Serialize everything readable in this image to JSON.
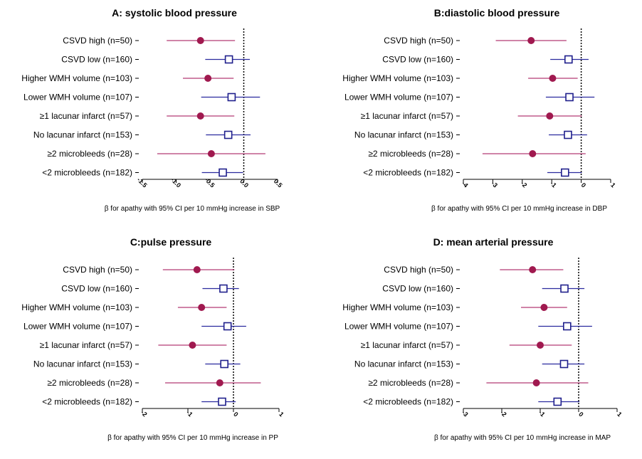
{
  "colors": {
    "group_a": "#a0194f",
    "group_b": "#1f1f8c",
    "group_a_ci": "#b53a73",
    "group_b_ci": "#2a2a9e"
  },
  "chart_data": [
    {
      "type": "forest",
      "title": "A: systolic blood pressure",
      "xlabel": "β for apathy with 95% CI per 10 mmHg increase in SBP",
      "xlim": [
        -1.5,
        0.5
      ],
      "ticks": [
        "-1.5",
        "-1.0",
        "-0.5",
        "0.0",
        "0.5"
      ],
      "tick_values": [
        -1.5,
        -1.0,
        -0.5,
        0.0,
        0.5
      ],
      "rows": [
        {
          "label": "CSVD high (n=50)",
          "est": -0.64,
          "lo": -1.14,
          "hi": -0.13,
          "marker": "circle"
        },
        {
          "label": "CSVD low (n=160)",
          "est": -0.22,
          "lo": -0.57,
          "hi": 0.09,
          "marker": "square"
        },
        {
          "label": "Higher WMH volume (n=103)",
          "est": -0.53,
          "lo": -0.9,
          "hi": -0.15,
          "marker": "circle"
        },
        {
          "label": "Lower WMH volume (n=107)",
          "est": -0.18,
          "lo": -0.63,
          "hi": 0.24,
          "marker": "square"
        },
        {
          "label": "≥1 lacunar infarct (n=57)",
          "est": -0.64,
          "lo": -1.14,
          "hi": -0.14,
          "marker": "circle"
        },
        {
          "label": "No lacunar infarct (n=153)",
          "est": -0.23,
          "lo": -0.56,
          "hi": 0.1,
          "marker": "square"
        },
        {
          "label": "≥2 microbleeds (n=28)",
          "est": -0.48,
          "lo": -1.28,
          "hi": 0.32,
          "marker": "circle"
        },
        {
          "label": "<2 microbleeds (n=182)",
          "est": -0.31,
          "lo": -0.62,
          "hi": -0.01,
          "marker": "square"
        }
      ]
    },
    {
      "type": "forest",
      "title": "B:diastolic blood pressure",
      "xlabel": "β for apathy with 95% CI per 10 mmHg increase in DBP",
      "xlim": [
        -4,
        1
      ],
      "ticks": [
        "-4",
        "-3",
        "-2",
        "-1",
        "0",
        "1"
      ],
      "tick_values": [
        -4,
        -3,
        -2,
        -1,
        0,
        1
      ],
      "rows": [
        {
          "label": "CSVD high (n=50)",
          "est": -1.7,
          "lo": -2.9,
          "hi": -0.5,
          "marker": "circle"
        },
        {
          "label": "CSVD low (n=160)",
          "est": -0.43,
          "lo": -1.05,
          "hi": 0.25,
          "marker": "square"
        },
        {
          "label": "Higher WMH volume (n=103)",
          "est": -0.97,
          "lo": -1.8,
          "hi": -0.12,
          "marker": "circle"
        },
        {
          "label": "Lower WMH volume (n=107)",
          "est": -0.4,
          "lo": -1.2,
          "hi": 0.45,
          "marker": "square"
        },
        {
          "label": "≥1 lacunar infarct (n=57)",
          "est": -1.07,
          "lo": -2.15,
          "hi": 0.02,
          "marker": "circle"
        },
        {
          "label": "No lacunar infarct (n=153)",
          "est": -0.45,
          "lo": -1.1,
          "hi": 0.2,
          "marker": "square"
        },
        {
          "label": "≥2 microbleeds (n=28)",
          "est": -1.65,
          "lo": -3.35,
          "hi": 0.15,
          "marker": "circle"
        },
        {
          "label": "<2 microbleeds (n=182)",
          "est": -0.55,
          "lo": -1.15,
          "hi": 0.02,
          "marker": "square"
        }
      ]
    },
    {
      "type": "forest",
      "title": "C:pulse pressure",
      "xlabel": "β for apathy with 95% CI per 10 mmHg increase in PP",
      "xlim": [
        -2,
        1
      ],
      "ticks": [
        "-2",
        "-1",
        "0",
        "1"
      ],
      "tick_values": [
        -2,
        -1,
        0,
        1
      ],
      "rows": [
        {
          "label": "CSVD high (n=50)",
          "est": -0.8,
          "lo": -1.55,
          "hi": 0.02,
          "marker": "circle"
        },
        {
          "label": "CSVD low (n=160)",
          "est": -0.22,
          "lo": -0.68,
          "hi": 0.12,
          "marker": "square"
        },
        {
          "label": "Higher WMH volume (n=103)",
          "est": -0.7,
          "lo": -1.22,
          "hi": -0.15,
          "marker": "circle"
        },
        {
          "label": "Lower WMH volume (n=107)",
          "est": -0.13,
          "lo": -0.7,
          "hi": 0.28,
          "marker": "square"
        },
        {
          "label": "≥1 lacunar infarct (n=57)",
          "est": -0.9,
          "lo": -1.65,
          "hi": -0.15,
          "marker": "circle"
        },
        {
          "label": "No lacunar infarct (n=153)",
          "est": -0.2,
          "lo": -0.62,
          "hi": 0.15,
          "marker": "square"
        },
        {
          "label": "≥2 microbleeds (n=28)",
          "est": -0.3,
          "lo": -1.5,
          "hi": 0.6,
          "marker": "circle"
        },
        {
          "label": "<2 microbleeds (n=182)",
          "est": -0.25,
          "lo": -0.7,
          "hi": 0.05,
          "marker": "square"
        }
      ]
    },
    {
      "type": "forest",
      "title": "D: mean arterial pressure",
      "xlabel": "β for apathy with 95% CI per 10 mmHg increase in MAP",
      "xlim": [
        -3,
        1
      ],
      "ticks": [
        "-3",
        "-2",
        "-1",
        "0",
        "1"
      ],
      "tick_values": [
        -3,
        -2,
        -1,
        0,
        1
      ],
      "rows": [
        {
          "label": "CSVD high (n=50)",
          "est": -1.2,
          "lo": -2.05,
          "hi": -0.4,
          "marker": "circle"
        },
        {
          "label": "CSVD low (n=160)",
          "est": -0.37,
          "lo": -0.95,
          "hi": 0.15,
          "marker": "square"
        },
        {
          "label": "Higher WMH volume (n=103)",
          "est": -0.9,
          "lo": -1.5,
          "hi": -0.3,
          "marker": "circle"
        },
        {
          "label": "Lower WMH volume (n=107)",
          "est": -0.3,
          "lo": -1.05,
          "hi": 0.35,
          "marker": "square"
        },
        {
          "label": "≥1 lacunar infarct (n=57)",
          "est": -1.0,
          "lo": -1.8,
          "hi": -0.18,
          "marker": "circle"
        },
        {
          "label": "No lacunar infarct (n=153)",
          "est": -0.38,
          "lo": -0.95,
          "hi": 0.15,
          "marker": "square"
        },
        {
          "label": "≥2 microbleeds (n=28)",
          "est": -1.1,
          "lo": -2.4,
          "hi": 0.25,
          "marker": "circle"
        },
        {
          "label": "<2 microbleeds (n=182)",
          "est": -0.55,
          "lo": -1.05,
          "hi": 0.02,
          "marker": "square"
        }
      ]
    }
  ]
}
